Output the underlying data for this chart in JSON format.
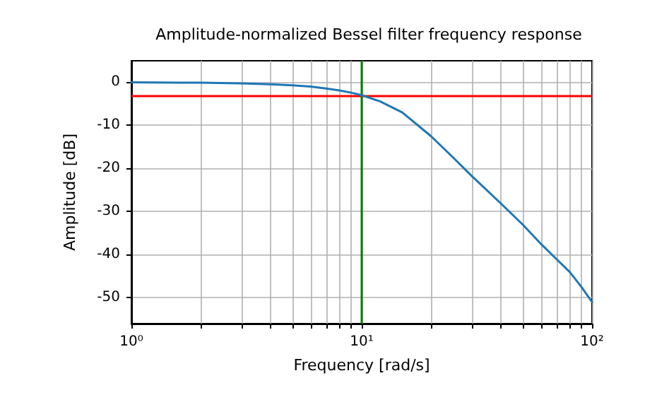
{
  "chart_data": {
    "type": "line",
    "title": "Amplitude-normalized Bessel filter frequency response",
    "xlabel": "Frequency [rad/s]",
    "ylabel": "Amplitude [dB]",
    "x": [
      1,
      2,
      3,
      4,
      5,
      6,
      7,
      8,
      9,
      10,
      12,
      15,
      20,
      25,
      30,
      40,
      50,
      60,
      70,
      80,
      90,
      100
    ],
    "series": [
      {
        "color": "#1f77b4",
        "values": [
          0,
          -0.1,
          -0.25,
          -0.45,
          -0.7,
          -1.0,
          -1.45,
          -1.9,
          -2.4,
          -3.0,
          -4.4,
          -7,
          -12.5,
          -17.5,
          -21.7,
          -28,
          -33,
          -37.5,
          -41,
          -44,
          -47.5,
          -51
        ]
      }
    ],
    "log": "x",
    "xlim": [
      1,
      100
    ],
    "ylim": [
      -56,
      5
    ],
    "xticks": [
      {
        "value": 1,
        "label": "10⁰"
      },
      {
        "value": 2,
        "label": null
      },
      {
        "value": 3,
        "label": null
      },
      {
        "value": 4,
        "label": null
      },
      {
        "value": 5,
        "label": null
      },
      {
        "value": 6,
        "label": null
      },
      {
        "value": 7,
        "label": null
      },
      {
        "value": 8,
        "label": null
      },
      {
        "value": 9,
        "label": null
      },
      {
        "value": 10,
        "label": "10¹"
      },
      {
        "value": 20,
        "label": null
      },
      {
        "value": 30,
        "label": null
      },
      {
        "value": 40,
        "label": null
      },
      {
        "value": 50,
        "label": null
      },
      {
        "value": 60,
        "label": null
      },
      {
        "value": 70,
        "label": null
      },
      {
        "value": 80,
        "label": null
      },
      {
        "value": 90,
        "label": null
      },
      {
        "value": 100,
        "label": "10²"
      }
    ],
    "yticks": [
      0,
      -10,
      -20,
      -30,
      -40,
      -50
    ],
    "ref_lines": [
      {
        "axis": "y",
        "value": -3,
        "color": "#ff0000"
      },
      {
        "axis": "x",
        "value": 10,
        "color": "#008000"
      }
    ],
    "grid": true,
    "marker": "none",
    "line_style": "solid"
  }
}
